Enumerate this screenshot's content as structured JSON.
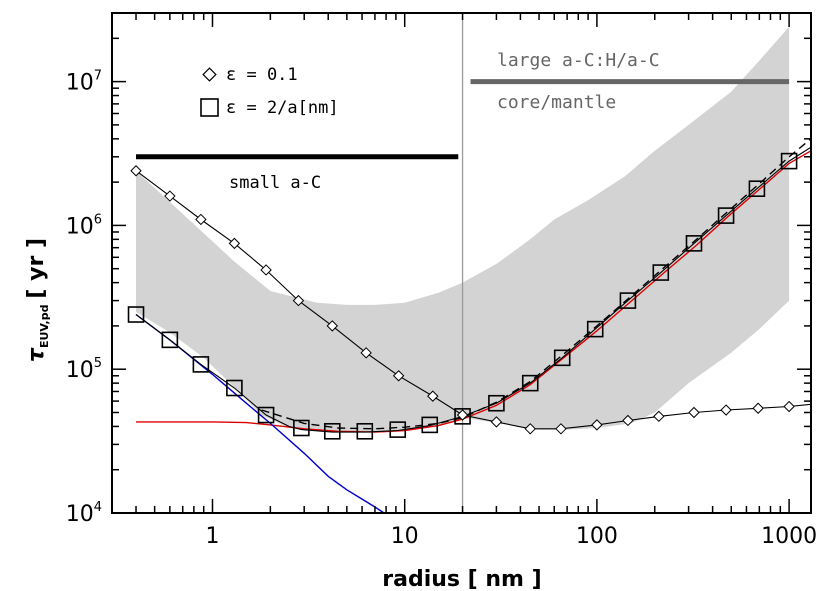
{
  "chart_data": {
    "type": "line",
    "xlabel": "radius [ nm ]",
    "ylabel": "τ",
    "ylabel_sub": "EUV,pd",
    "ylabel_unit": "[ yr ]",
    "x_scale": "log",
    "y_scale": "log",
    "xlim": [
      0.3,
      1300
    ],
    "ylim": [
      10000,
      30000000
    ],
    "x_ticks": [
      {
        "v": 1,
        "label": "1"
      },
      {
        "v": 10,
        "label": "10"
      },
      {
        "v": 100,
        "label": "100"
      },
      {
        "v": 1000,
        "label": "1000"
      }
    ],
    "y_ticks": [
      {
        "v": 10000,
        "base": "10",
        "exp": "4"
      },
      {
        "v": 100000,
        "base": "10",
        "exp": "5"
      },
      {
        "v": 1000000,
        "base": "10",
        "exp": "6"
      },
      {
        "v": 10000000,
        "base": "10",
        "exp": "7"
      }
    ],
    "vline": {
      "x": 20,
      "color": "#999999"
    },
    "shaded_band": {
      "color": "#d3d3d3",
      "upper": [
        [
          0.4,
          2400000
        ],
        [
          1.3,
          560000
        ],
        [
          2,
          350000
        ],
        [
          3.5,
          290000
        ],
        [
          5,
          280000
        ],
        [
          7,
          280000
        ],
        [
          10,
          290000
        ],
        [
          15,
          340000
        ],
        [
          20,
          400000
        ],
        [
          30,
          540000
        ],
        [
          45,
          800000
        ],
        [
          60,
          1100000
        ],
        [
          90,
          1500000
        ],
        [
          140,
          2200000
        ],
        [
          200,
          3300000
        ],
        [
          300,
          5000000
        ],
        [
          500,
          8500000
        ],
        [
          700,
          14000000
        ],
        [
          1000,
          24000000
        ]
      ],
      "lower": [
        [
          1000,
          300000
        ],
        [
          700,
          190000
        ],
        [
          500,
          130000
        ],
        [
          300,
          80000
        ],
        [
          200,
          50000
        ],
        [
          150,
          42000
        ],
        [
          100,
          39000
        ],
        [
          70,
          38000
        ],
        [
          50,
          38000
        ],
        [
          35,
          41000
        ],
        [
          25,
          44000
        ],
        [
          20,
          46000
        ],
        [
          15,
          40000
        ],
        [
          10,
          37000
        ],
        [
          7,
          36500
        ],
        [
          5,
          36500
        ],
        [
          3.5,
          37000
        ],
        [
          2.5,
          39000
        ],
        [
          1.8,
          48000
        ],
        [
          1.3,
          75000
        ],
        [
          0.9,
          120000
        ],
        [
          0.6,
          180000
        ],
        [
          0.4,
          250000
        ]
      ]
    },
    "series": [
      {
        "name": "ε = 0.1",
        "marker": "diamond",
        "line_color": "#000000",
        "points": [
          [
            0.4,
            2400000
          ],
          [
            0.6,
            1600000
          ],
          [
            0.87,
            1100000
          ],
          [
            1.3,
            750000
          ],
          [
            1.9,
            490000
          ],
          [
            2.8,
            300000
          ],
          [
            4.2,
            200000
          ],
          [
            6.3,
            130000
          ],
          [
            9.3,
            90000
          ],
          [
            14,
            65000
          ],
          [
            20,
            48000
          ],
          [
            30,
            43000
          ],
          [
            45,
            38500
          ],
          [
            65,
            38500
          ],
          [
            100,
            41000
          ],
          [
            145,
            44000
          ],
          [
            210,
            47000
          ],
          [
            320,
            50000
          ],
          [
            470,
            52000
          ],
          [
            690,
            53500
          ],
          [
            1000,
            55000
          ]
        ],
        "line": [
          [
            0.4,
            2400000
          ],
          [
            0.6,
            1600000
          ],
          [
            0.87,
            1100000
          ],
          [
            1.3,
            750000
          ],
          [
            1.9,
            490000
          ],
          [
            2.8,
            300000
          ],
          [
            4.2,
            200000
          ],
          [
            6.3,
            130000
          ],
          [
            9.3,
            90000
          ],
          [
            14,
            65000
          ],
          [
            20,
            48000
          ],
          [
            30,
            43000
          ],
          [
            45,
            38500
          ],
          [
            65,
            38500
          ],
          [
            100,
            41000
          ],
          [
            145,
            44000
          ],
          [
            210,
            47000
          ],
          [
            320,
            50000
          ],
          [
            470,
            52000
          ],
          [
            690,
            53500
          ],
          [
            1000,
            55000
          ],
          [
            1300,
            57000
          ]
        ]
      },
      {
        "name": "ε = 2/a[nm]",
        "marker": "square",
        "line_color": "#000000",
        "points": [
          [
            0.4,
            240000
          ],
          [
            0.6,
            160000
          ],
          [
            0.87,
            108000
          ],
          [
            1.3,
            74000
          ],
          [
            1.9,
            48000
          ],
          [
            2.9,
            39000
          ],
          [
            4.2,
            37000
          ],
          [
            6.2,
            37000
          ],
          [
            9.2,
            38000
          ],
          [
            13.5,
            41000
          ],
          [
            20,
            47000
          ],
          [
            30,
            58000
          ],
          [
            45,
            80000
          ],
          [
            66,
            120000
          ],
          [
            98,
            190000
          ],
          [
            145,
            300000
          ],
          [
            215,
            470000
          ],
          [
            320,
            750000
          ],
          [
            470,
            1170000
          ],
          [
            680,
            1800000
          ],
          [
            1000,
            2800000
          ]
        ],
        "line": [
          [
            0.4,
            240000
          ],
          [
            0.6,
            160000
          ],
          [
            0.87,
            108000
          ],
          [
            1.3,
            74000
          ],
          [
            1.9,
            48000
          ],
          [
            2.5,
            40000
          ],
          [
            2.9,
            38000
          ],
          [
            4.2,
            36500
          ],
          [
            6.2,
            36500
          ],
          [
            9.2,
            37500
          ],
          [
            13.5,
            40500
          ],
          [
            20,
            47000
          ],
          [
            30,
            58000
          ],
          [
            45,
            80000
          ],
          [
            66,
            120000
          ],
          [
            98,
            190000
          ],
          [
            145,
            300000
          ],
          [
            215,
            470000
          ],
          [
            320,
            750000
          ],
          [
            470,
            1170000
          ],
          [
            680,
            1800000
          ],
          [
            1000,
            2800000
          ],
          [
            1300,
            3500000
          ]
        ]
      }
    ],
    "extra_lines": [
      {
        "id": "dashed",
        "color": "#000000",
        "dash": "8,5",
        "points": [
          [
            1.8,
            52000
          ],
          [
            3,
            42000
          ],
          [
            4.5,
            39000
          ],
          [
            7,
            38500
          ],
          [
            10,
            39500
          ],
          [
            15,
            42000
          ],
          [
            20,
            46000
          ],
          [
            30,
            59000
          ],
          [
            45,
            82000
          ],
          [
            66,
            125000
          ],
          [
            100,
            200000
          ],
          [
            150,
            320000
          ],
          [
            220,
            500000
          ],
          [
            330,
            800000
          ],
          [
            480,
            1250000
          ],
          [
            700,
            1950000
          ],
          [
            1000,
            3000000
          ],
          [
            1300,
            4000000
          ]
        ]
      },
      {
        "id": "red",
        "color": "#dd0000",
        "dash": "",
        "points": [
          [
            0.4,
            43000
          ],
          [
            1,
            43000
          ],
          [
            1.5,
            42500
          ],
          [
            2,
            41000
          ],
          [
            3,
            38500
          ],
          [
            4.5,
            37000
          ],
          [
            7,
            36500
          ],
          [
            10,
            37500
          ],
          [
            15,
            40500
          ],
          [
            20,
            45000
          ],
          [
            30,
            56000
          ],
          [
            45,
            78000
          ],
          [
            66,
            118000
          ],
          [
            100,
            185000
          ],
          [
            150,
            295000
          ],
          [
            220,
            460000
          ],
          [
            330,
            730000
          ],
          [
            480,
            1150000
          ],
          [
            700,
            1780000
          ],
          [
            1000,
            2700000
          ],
          [
            1300,
            3300000
          ]
        ]
      },
      {
        "id": "blue",
        "color": "#0000cc",
        "dash": "",
        "points": [
          [
            0.4,
            240000
          ],
          [
            0.6,
            160000
          ],
          [
            1,
            92000
          ],
          [
            1.5,
            58000
          ],
          [
            2,
            42000
          ],
          [
            3,
            26000
          ],
          [
            4,
            18000
          ],
          [
            5,
            14500
          ],
          [
            6,
            12500
          ],
          [
            7,
            11000
          ],
          [
            8,
            9800
          ]
        ]
      }
    ],
    "bars": [
      {
        "id": "small",
        "x": [
          0.4,
          19
        ],
        "y": 3000000,
        "color": "#000000",
        "width": 5
      },
      {
        "id": "large",
        "x": [
          22,
          1000
        ],
        "y": 10000000,
        "color": "#666666",
        "width": 5
      }
    ],
    "annotations": {
      "legend_diamond": "ε = 0.1",
      "legend_square": "ε = 2/a[nm]",
      "small": "small a-C",
      "large": "large a-C:H/a-C",
      "core": "core/mantle"
    }
  }
}
